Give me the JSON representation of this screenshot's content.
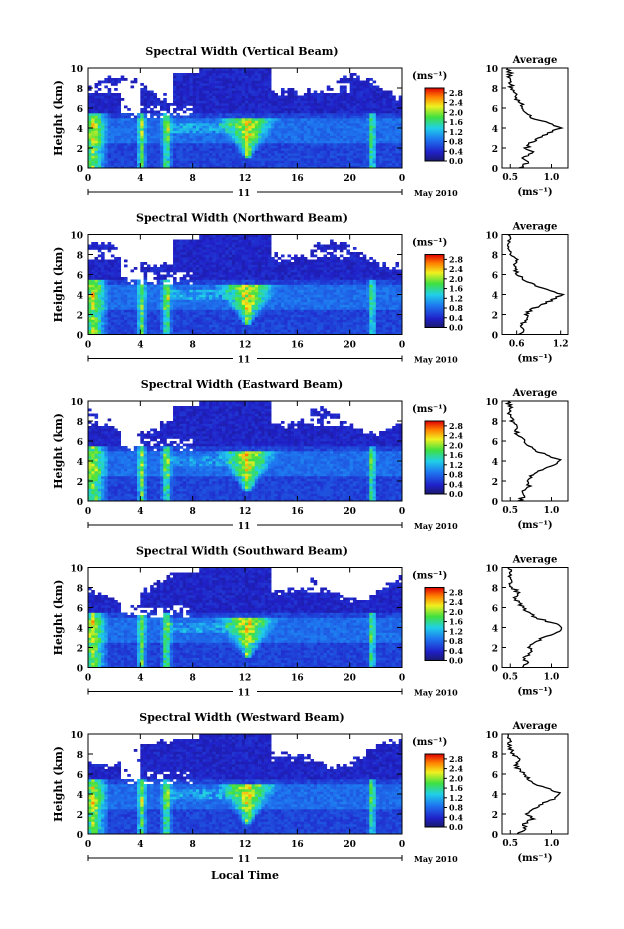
{
  "figure": {
    "date_label": "May 2010",
    "day_label": "11",
    "xlabel": "Local Time"
  },
  "chart_data": [
    {
      "type": "heatmap",
      "title": "Spectral Width (Vertical Beam)",
      "xlabel": "",
      "ylabel": "Height (km)",
      "xlim": [
        0,
        24
      ],
      "ylim": [
        0,
        10
      ],
      "xticks": [
        "0",
        "4",
        "8",
        "12",
        "16",
        "20",
        "0"
      ],
      "yticks": [
        "0",
        "2",
        "4",
        "6",
        "8",
        "10"
      ],
      "colorbar": {
        "unit": "(ms⁻¹)",
        "ticks": [
          "0.0",
          "0.4",
          "0.8",
          "1.2",
          "1.6",
          "2.0",
          "2.4",
          "2.8"
        ],
        "range": [
          0,
          3.0
        ]
      },
      "profile": {
        "title": "Average",
        "xlabel": "(ms⁻¹)",
        "xticks": [
          "0.5",
          "1.0"
        ],
        "xlim": [
          0.4,
          1.2
        ],
        "height": [
          0,
          0.5,
          1,
          1.5,
          2,
          2.5,
          3,
          3.5,
          4,
          4.5,
          5,
          5.5,
          6,
          6.5,
          7,
          7.5,
          8,
          8.5,
          9,
          9.5,
          10
        ],
        "value": [
          0.62,
          0.7,
          0.66,
          0.78,
          0.7,
          0.74,
          0.84,
          0.98,
          1.1,
          0.95,
          0.78,
          0.7,
          0.66,
          0.62,
          0.55,
          0.58,
          0.52,
          0.5,
          0.48,
          0.5,
          0.47
        ]
      }
    },
    {
      "type": "heatmap",
      "title": "Spectral Width (Northward Beam)",
      "xlabel": "",
      "ylabel": "Height (km)",
      "xlim": [
        0,
        24
      ],
      "ylim": [
        0,
        10
      ],
      "xticks": [
        "0",
        "4",
        "8",
        "12",
        "16",
        "20",
        "0"
      ],
      "yticks": [
        "0",
        "2",
        "4",
        "6",
        "8",
        "10"
      ],
      "colorbar": {
        "unit": "(ms⁻¹)",
        "ticks": [
          "0.0",
          "0.4",
          "0.8",
          "1.2",
          "1.6",
          "2.0",
          "2.4",
          "2.8"
        ],
        "range": [
          0,
          3.0
        ]
      },
      "profile": {
        "title": "Average",
        "xlabel": "(ms⁻¹)",
        "xticks": [
          "0.6",
          "1.2"
        ],
        "xlim": [
          0.4,
          1.3
        ],
        "height": [
          0,
          0.5,
          1,
          1.5,
          2,
          2.5,
          3,
          3.5,
          4,
          4.5,
          5,
          5.5,
          6,
          6.5,
          7,
          7.5,
          8,
          8.5,
          9,
          9.5,
          10
        ],
        "value": [
          0.62,
          0.7,
          0.65,
          0.75,
          0.72,
          0.8,
          0.95,
          1.1,
          1.22,
          1.0,
          0.82,
          0.7,
          0.62,
          0.58,
          0.55,
          0.6,
          0.52,
          0.5,
          0.48,
          0.5,
          0.48
        ]
      }
    },
    {
      "type": "heatmap",
      "title": "Spectral Width (Eastward Beam)",
      "xlabel": "",
      "ylabel": "Height (km)",
      "xlim": [
        0,
        24
      ],
      "ylim": [
        0,
        10
      ],
      "xticks": [
        "0",
        "4",
        "8",
        "12",
        "16",
        "20",
        "0"
      ],
      "yticks": [
        "0",
        "2",
        "4",
        "6",
        "8",
        "10"
      ],
      "colorbar": {
        "unit": "(ms⁻¹)",
        "ticks": [
          "0.0",
          "0.4",
          "0.8",
          "1.2",
          "1.6",
          "2.0",
          "2.4",
          "2.8"
        ],
        "range": [
          0,
          3.0
        ]
      },
      "profile": {
        "title": "Average",
        "xlabel": "(ms⁻¹)",
        "xticks": [
          "0.5",
          "1.0"
        ],
        "xlim": [
          0.4,
          1.2
        ],
        "height": [
          0,
          0.5,
          1,
          1.5,
          2,
          2.5,
          3,
          3.5,
          4,
          4.5,
          5,
          5.5,
          6,
          6.5,
          7,
          7.5,
          8,
          8.5,
          9,
          9.5,
          10
        ],
        "value": [
          0.6,
          0.68,
          0.64,
          0.74,
          0.7,
          0.76,
          0.86,
          1.0,
          1.12,
          0.98,
          0.8,
          0.72,
          0.66,
          0.6,
          0.57,
          0.6,
          0.53,
          0.5,
          0.49,
          0.5,
          0.47
        ]
      }
    },
    {
      "type": "heatmap",
      "title": "Spectral Width (Southward Beam)",
      "xlabel": "",
      "ylabel": "Height (km)",
      "xlim": [
        0,
        24
      ],
      "ylim": [
        0,
        10
      ],
      "xticks": [
        "0",
        "4",
        "8",
        "12",
        "16",
        "20",
        "0"
      ],
      "yticks": [
        "0",
        "2",
        "4",
        "6",
        "8",
        "10"
      ],
      "colorbar": {
        "unit": "(ms⁻¹)",
        "ticks": [
          "0.0",
          "0.4",
          "0.8",
          "1.2",
          "1.6",
          "2.0",
          "2.4",
          "2.8"
        ],
        "range": [
          0,
          3.0
        ]
      },
      "profile": {
        "title": "Average",
        "xlabel": "(ms⁻¹)",
        "xticks": [
          "0.5",
          "1.0"
        ],
        "xlim": [
          0.4,
          1.2
        ],
        "height": [
          0,
          0.5,
          1,
          1.5,
          2,
          2.5,
          3,
          3.5,
          4,
          4.5,
          5,
          5.5,
          6,
          6.5,
          7,
          7.5,
          8,
          8.5,
          9,
          9.5,
          10
        ],
        "value": [
          0.62,
          0.7,
          0.68,
          0.76,
          0.72,
          0.8,
          0.9,
          1.05,
          1.15,
          1.0,
          0.8,
          0.72,
          0.65,
          0.6,
          0.56,
          0.6,
          0.52,
          0.5,
          0.48,
          0.5,
          0.47
        ]
      }
    },
    {
      "type": "heatmap",
      "title": "Spectral Width (Westward Beam)",
      "xlabel": "Local Time",
      "ylabel": "Height (km)",
      "xlim": [
        0,
        24
      ],
      "ylim": [
        0,
        10
      ],
      "xticks": [
        "0",
        "4",
        "8",
        "12",
        "16",
        "20",
        "0"
      ],
      "yticks": [
        "0",
        "2",
        "4",
        "6",
        "8",
        "10"
      ],
      "colorbar": {
        "unit": "(ms⁻¹)",
        "ticks": [
          "0.0",
          "0.4",
          "0.8",
          "1.2",
          "1.6",
          "2.0",
          "2.4",
          "2.8"
        ],
        "range": [
          0,
          3.0
        ]
      },
      "profile": {
        "title": "Average",
        "xlabel": "(ms⁻¹)",
        "xticks": [
          "0.5",
          "1.0"
        ],
        "xlim": [
          0.4,
          1.2
        ],
        "height": [
          0,
          0.5,
          1,
          1.5,
          2,
          2.5,
          3,
          3.5,
          4,
          4.5,
          5,
          5.5,
          6,
          6.5,
          7,
          7.5,
          8,
          8.5,
          9,
          9.5,
          10
        ],
        "value": [
          0.6,
          0.7,
          0.66,
          0.76,
          0.7,
          0.78,
          0.88,
          1.02,
          1.12,
          0.98,
          0.8,
          0.72,
          0.66,
          0.6,
          0.56,
          0.6,
          0.53,
          0.5,
          0.48,
          0.5,
          0.47
        ]
      }
    }
  ]
}
